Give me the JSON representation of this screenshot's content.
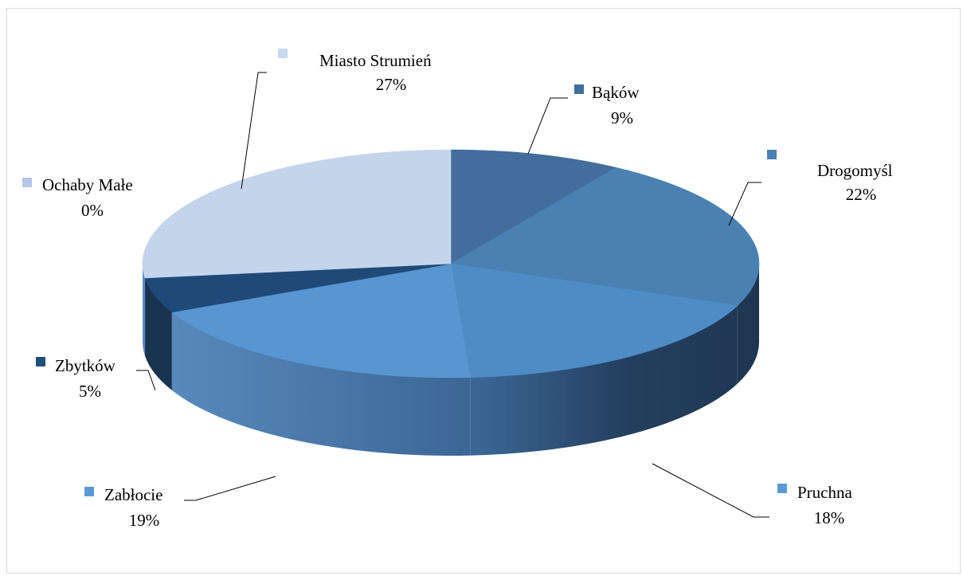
{
  "chart_data": {
    "type": "pie",
    "style": "3d",
    "title": "",
    "legend": "none",
    "categories": [
      "Bąków",
      "Drogomyśl",
      "Pruchna",
      "Zabłocie",
      "Zbytków",
      "Ochaby Małe",
      "Miasto Strumień"
    ],
    "values": [
      9,
      22,
      18,
      19,
      5,
      0,
      27
    ],
    "value_labels": [
      "9%",
      "22%",
      "18%",
      "19%",
      "5%",
      "0%",
      "27%"
    ],
    "colors": [
      "#426d9c",
      "#4a81b2",
      "#4f8cc6",
      "#5995d0",
      "#1f4a78",
      "#b2c6e4",
      "#c4d4ea"
    ],
    "legend_key_colors": [
      "#3e6f9e",
      "#4a81b2",
      "#5b9bd5",
      "#5b9bd5",
      "#1f4e79",
      "#b4c7e7",
      "#c9d8ee"
    ]
  }
}
